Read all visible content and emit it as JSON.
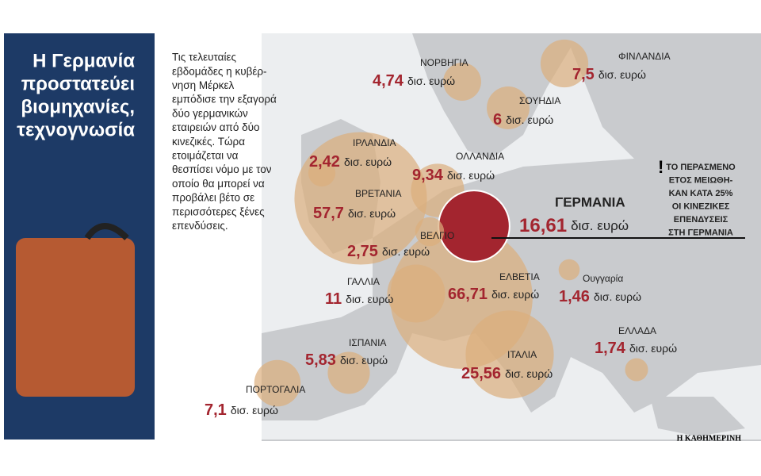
{
  "title_lines": [
    "Η Γερμανία",
    "προστατεύει",
    "βιομηχανίες,",
    "τεχνογνωσία"
  ],
  "intro_lines": [
    "Τις τελευταίες",
    "εβδομάδες η κυβέρ-",
    "νηση  Μέρκελ",
    "εμπόδισε την εξαγορά",
    "δύο γερμανικών",
    "εταιρειών από δύο",
    "κινεζικές. Τώρα",
    "ετοιμάζεται να",
    "θεσπίσει νόμο με τον",
    "οποίο θα μπορεί να",
    "προβάλει βέτο σε",
    "περισσότερες ξένες",
    "επενδύσεις."
  ],
  "unit": "δισ. ευρώ",
  "countries": [
    {
      "name": "ΝΟΡΒΗΓΙΑ",
      "value": 4.74,
      "value_label": "4,74"
    },
    {
      "name": "ΦΙΝΛΑΝΔΙΑ",
      "value": 7.5,
      "value_label": "7,5"
    },
    {
      "name": "ΣΟΥΗΔΙΑ",
      "value": 6,
      "value_label": "6"
    },
    {
      "name": "ΙΡΛΑΝΔΙΑ",
      "value": 2.42,
      "value_label": "2,42"
    },
    {
      "name": "ΟΛΛΑΝΔΙΑ",
      "value": 9.34,
      "value_label": "9,34"
    },
    {
      "name": "ΒΡΕΤΑΝΙΑ",
      "value": 57.7,
      "value_label": "57,7"
    },
    {
      "name": "ΓΕΡΜΑΝΙΑ",
      "value": 16.61,
      "value_label": "16,61"
    },
    {
      "name": "ΒΕΛΓΙΟ",
      "value": 2.75,
      "value_label": "2,75"
    },
    {
      "name": "ΓΑΛΛΙΑ",
      "value": 11,
      "value_label": "11"
    },
    {
      "name": "ΕΛΒΕΤΙΑ",
      "value": 66.71,
      "value_label": "66,71"
    },
    {
      "name": "Ουγγαρία",
      "value": 1.46,
      "value_label": "1,46"
    },
    {
      "name": "ΕΛΛΑΔΑ",
      "value": 1.74,
      "value_label": "1,74"
    },
    {
      "name": "ΙΣΠΑΝΙΑ",
      "value": 5.83,
      "value_label": "5,83"
    },
    {
      "name": "ΙΤΑΛΙΑ",
      "value": 25.56,
      "value_label": "25,56"
    },
    {
      "name": "ΠΟΡΤΟΓΑΛΙΑ",
      "value": 7.1,
      "value_label": "7,1"
    }
  ],
  "note_lines": [
    "ΤΟ ΠΕΡΑΣΜΕΝΟ",
    "ΕΤΟΣ ΜΕΙΩΘΗ-",
    "ΚΑΝ ΚΑΤΑ 25%",
    "ΟΙ ΚΙΝΕΖΙΚΕΣ",
    "ΕΠΕΝΔΥΣΕΙΣ",
    "ΣΤΗ ΓΕΡΜΑΝΙΑ"
  ],
  "credit": "Η ΚΑΘΗΜΕΡΙΝΗ"
}
